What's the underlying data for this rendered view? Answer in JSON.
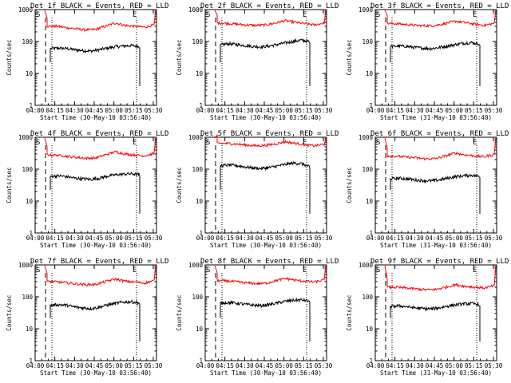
{
  "chart_data": [
    {
      "type": "line",
      "title": "Det 1f BLACK = Events, RED = LLD",
      "xlabel": "Start Time (30-May-10 03:56:40)",
      "ylabel": "Counts/sec",
      "x_ticks": [
        "04:00",
        "04:15",
        "04:30",
        "04:45",
        "05:00",
        "05:15",
        "05:30"
      ],
      "y_ticks": [
        "1",
        "10",
        "100",
        "1000"
      ],
      "ylim": [
        1,
        1000
      ],
      "yscale": "log",
      "markers": [
        "S",
        "E"
      ],
      "series": [
        {
          "name": "Events",
          "color": "#000000",
          "values": [
            60,
            62,
            60,
            55,
            52,
            50,
            55,
            62,
            68,
            72,
            75,
            70
          ]
        },
        {
          "name": "LLD",
          "color": "#ff0000",
          "values": [
            300,
            300,
            270,
            250,
            230,
            240,
            300,
            380,
            320,
            300,
            280,
            330
          ]
        }
      ]
    },
    {
      "type": "line",
      "title": "Det 2f BLACK = Events, RED = LLD",
      "xlabel": "Start Time (30-May-10 03:56:40)",
      "ylabel": "Counts/sec",
      "x_ticks": [
        "04:00",
        "04:15",
        "04:30",
        "04:45",
        "05:00",
        "05:15",
        "05:30"
      ],
      "y_ticks": [
        "1",
        "10",
        "100",
        "1000"
      ],
      "ylim": [
        1,
        1000
      ],
      "yscale": "log",
      "markers": [
        "S",
        "E"
      ],
      "series": [
        {
          "name": "Events",
          "color": "#000000",
          "values": [
            80,
            85,
            80,
            75,
            70,
            68,
            72,
            80,
            90,
            100,
            110,
            100
          ]
        },
        {
          "name": "LLD",
          "color": "#ff0000",
          "values": [
            380,
            370,
            350,
            330,
            320,
            330,
            380,
            450,
            400,
            360,
            330,
            380
          ]
        }
      ]
    },
    {
      "type": "line",
      "title": "Det 3f BLACK = Events, RED = LLD",
      "xlabel": "Start Time (31-May-10 03:56:40)",
      "ylabel": "Counts/sec",
      "x_ticks": [
        "04:00",
        "04:15",
        "04:30",
        "04:45",
        "05:00",
        "05:15",
        "05:30"
      ],
      "y_ticks": [
        "1",
        "10",
        "100",
        "1000"
      ],
      "ylim": [
        1,
        1000
      ],
      "yscale": "log",
      "markers": [
        "S",
        "E"
      ],
      "series": [
        {
          "name": "Events",
          "color": "#000000",
          "values": [
            70,
            72,
            70,
            65,
            62,
            60,
            65,
            72,
            80,
            88,
            92,
            85
          ]
        },
        {
          "name": "LLD",
          "color": "#ff0000",
          "values": [
            370,
            360,
            340,
            320,
            310,
            320,
            370,
            430,
            390,
            350,
            320,
            370
          ]
        }
      ]
    },
    {
      "type": "line",
      "title": "Det 4f BLACK = Events, RED = LLD",
      "xlabel": "Start Time (30-May-10 03:56:40)",
      "ylabel": "Counts/sec",
      "x_ticks": [
        "04:00",
        "04:15",
        "04:30",
        "04:45",
        "05:00",
        "05:15",
        "05:30"
      ],
      "y_ticks": [
        "1",
        "10",
        "100",
        "1000"
      ],
      "ylim": [
        1,
        1000
      ],
      "yscale": "log",
      "markers": [
        "S",
        "E"
      ],
      "series": [
        {
          "name": "Events",
          "color": "#000000",
          "values": [
            60,
            62,
            58,
            52,
            50,
            48,
            52,
            60,
            66,
            70,
            72,
            68
          ]
        },
        {
          "name": "LLD",
          "color": "#ff0000",
          "values": [
            280,
            275,
            255,
            235,
            220,
            225,
            280,
            350,
            300,
            280,
            260,
            310
          ]
        }
      ]
    },
    {
      "type": "line",
      "title": "Det 5f BLACK = Events, RED = LLD",
      "xlabel": "Start Time (30-May-10 03:56:40)",
      "ylabel": "Counts/sec",
      "x_ticks": [
        "04:00",
        "04:15",
        "04:30",
        "04:45",
        "05:00",
        "05:15",
        "05:30"
      ],
      "y_ticks": [
        "1",
        "10",
        "100",
        "1000"
      ],
      "ylim": [
        1,
        1000
      ],
      "yscale": "log",
      "markers": [
        "S",
        "E"
      ],
      "series": [
        {
          "name": "Events",
          "color": "#000000",
          "values": [
            130,
            135,
            128,
            118,
            110,
            105,
            112,
            125,
            140,
            155,
            150,
            120
          ]
        },
        {
          "name": "LLD",
          "color": "#ff0000",
          "values": [
            650,
            640,
            610,
            570,
            540,
            560,
            620,
            720,
            650,
            580,
            540,
            600
          ]
        }
      ]
    },
    {
      "type": "line",
      "title": "Det 6f BLACK = Events, RED = LLD",
      "xlabel": "Start Time (31-May-10 03:56:40)",
      "ylabel": "Counts/sec",
      "x_ticks": [
        "04:00",
        "04:15",
        "04:30",
        "04:45",
        "05:00",
        "05:15",
        "05:30"
      ],
      "y_ticks": [
        "1",
        "10",
        "100",
        "1000"
      ],
      "ylim": [
        1,
        1000
      ],
      "yscale": "log",
      "markers": [
        "S",
        "E"
      ],
      "series": [
        {
          "name": "Events",
          "color": "#000000",
          "values": [
            50,
            52,
            50,
            46,
            44,
            43,
            46,
            52,
            58,
            62,
            65,
            60
          ]
        },
        {
          "name": "LLD",
          "color": "#ff0000",
          "values": [
            260,
            255,
            240,
            225,
            210,
            215,
            260,
            320,
            280,
            260,
            245,
            290
          ]
        }
      ]
    },
    {
      "type": "line",
      "title": "Det 7f BLACK = Events, RED = LLD",
      "xlabel": "Start Time (30-May-10 03:56:40)",
      "ylabel": "Counts/sec",
      "x_ticks": [
        "04:00",
        "04:15",
        "04:30",
        "04:45",
        "05:00",
        "05:15",
        "05:30"
      ],
      "y_ticks": [
        "1",
        "10",
        "100",
        "1000"
      ],
      "ylim": [
        1,
        1000
      ],
      "yscale": "log",
      "markers": [
        "S",
        "E"
      ],
      "series": [
        {
          "name": "Events",
          "color": "#000000",
          "values": [
            55,
            57,
            54,
            48,
            45,
            43,
            47,
            55,
            62,
            68,
            70,
            65
          ]
        },
        {
          "name": "LLD",
          "color": "#ff0000",
          "values": [
            300,
            295,
            275,
            255,
            240,
            245,
            300,
            360,
            310,
            290,
            270,
            320
          ]
        }
      ]
    },
    {
      "type": "line",
      "title": "Det 8f BLACK = Events, RED = LLD",
      "xlabel": "Start Time (30-May-10 03:56:40)",
      "ylabel": "Counts/sec",
      "x_ticks": [
        "04:00",
        "04:15",
        "04:30",
        "04:45",
        "05:00",
        "05:15",
        "05:30"
      ],
      "y_ticks": [
        "1",
        "10",
        "100",
        "1000"
      ],
      "ylim": [
        1,
        1000
      ],
      "yscale": "log",
      "markers": [
        "S",
        "E"
      ],
      "series": [
        {
          "name": "Events",
          "color": "#000000",
          "values": [
            65,
            66,
            63,
            58,
            55,
            53,
            57,
            64,
            72,
            78,
            80,
            75
          ]
        },
        {
          "name": "LLD",
          "color": "#ff0000",
          "values": [
            320,
            315,
            295,
            275,
            260,
            265,
            320,
            380,
            330,
            310,
            290,
            340
          ]
        }
      ]
    },
    {
      "type": "line",
      "title": "Det 9f BLACK = Events, RED = LLD",
      "xlabel": "Start Time (31-May-10 03:56:40)",
      "ylabel": "Counts/sec",
      "x_ticks": [
        "04:00",
        "04:15",
        "04:30",
        "04:45",
        "05:00",
        "05:15",
        "05:30"
      ],
      "y_ticks": [
        "1",
        "10",
        "100",
        "1000"
      ],
      "ylim": [
        1,
        1000
      ],
      "yscale": "log",
      "markers": [
        "S",
        "E"
      ],
      "series": [
        {
          "name": "Events",
          "color": "#000000",
          "values": [
            50,
            52,
            49,
            45,
            43,
            42,
            45,
            51,
            56,
            60,
            62,
            58
          ]
        },
        {
          "name": "LLD",
          "color": "#ff0000",
          "values": [
            200,
            198,
            188,
            176,
            166,
            170,
            200,
            240,
            215,
            200,
            190,
            220
          ]
        }
      ]
    }
  ]
}
